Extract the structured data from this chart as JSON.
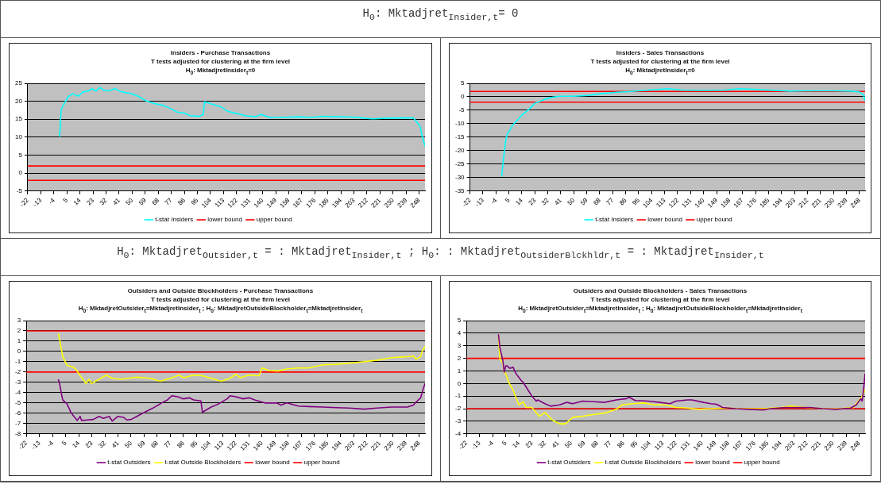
{
  "chart_data": [
    {
      "type": "other",
      "title": "H$_{0}$: Mktadjret$_{Insider,t}$= 0"
    },
    {
      "type": "line",
      "title": "Insiders - Purchase Transactions",
      "subtitle": "T tests adjusted for clustering at the firm level\nH$_{0}$: MktadjretInsider$_{t}$=0",
      "xlim": [
        -22,
        252
      ],
      "xticks": [
        -22,
        -13,
        -4,
        5,
        14,
        23,
        32,
        41,
        50,
        59,
        68,
        77,
        86,
        95,
        104,
        113,
        122,
        131,
        140,
        149,
        158,
        167,
        176,
        185,
        194,
        203,
        212,
        221,
        230,
        239,
        248
      ],
      "ylim": [
        -5,
        25
      ],
      "yticks": [
        -5,
        0,
        5,
        10,
        15,
        20,
        25
      ],
      "grid": "y",
      "legend": "bottom",
      "marker": "none",
      "line_style": "solid",
      "series": [
        {
          "name": "t-stat Insiders",
          "color": "#00ffff",
          "x": [
            0,
            1,
            3,
            6,
            9,
            13,
            16,
            20,
            22,
            25,
            28,
            31,
            34,
            38,
            43,
            49,
            54,
            60,
            66,
            71,
            77,
            81,
            86,
            90,
            96,
            99,
            100,
            105,
            111,
            116,
            120,
            128,
            135,
            139,
            145,
            154,
            165,
            173,
            182,
            192,
            201,
            210,
            216,
            226,
            244,
            246,
            248,
            249,
            250,
            252
          ],
          "values": [
            10.1,
            17.6,
            19.2,
            21.3,
            22.1,
            21.4,
            22.6,
            22.9,
            23.5,
            22.9,
            23.8,
            23.0,
            22.9,
            23.5,
            22.6,
            22.2,
            21.4,
            20.1,
            19.3,
            18.9,
            17.9,
            17.0,
            16.7,
            16.0,
            15.8,
            16.3,
            19.9,
            19.2,
            18.5,
            17.2,
            16.8,
            16.0,
            15.7,
            16.3,
            15.5,
            15.5,
            15.7,
            15.5,
            15.8,
            15.7,
            15.6,
            15.3,
            15.1,
            15.3,
            15.4,
            14.4,
            13.4,
            12.4,
            10.3,
            7.5
          ]
        },
        {
          "name": "lower bound",
          "color": "#ff0000",
          "x": [
            -22,
            252
          ],
          "values": [
            -2,
            -2
          ]
        },
        {
          "name": "upper bound",
          "color": "#ff0000",
          "x": [
            -22,
            252
          ],
          "values": [
            2,
            2
          ]
        }
      ]
    },
    {
      "type": "line",
      "title": "Insiders - Sales Transactions",
      "subtitle": "T tests adjusted for clustering at the firm level\nH$_{0}$: MktadjretInsider$_{t}$=0",
      "xlim": [
        -22,
        252
      ],
      "xticks": [
        -22,
        -13,
        -4,
        5,
        14,
        23,
        32,
        41,
        50,
        59,
        68,
        77,
        86,
        95,
        104,
        113,
        122,
        131,
        140,
        149,
        158,
        167,
        176,
        185,
        194,
        203,
        212,
        221,
        230,
        239,
        248
      ],
      "ylim": [
        -35,
        5
      ],
      "yticks": [
        -35,
        -30,
        -25,
        -20,
        -15,
        -10,
        -5,
        0,
        5
      ],
      "grid": "y",
      "legend": "bottom",
      "marker": "none",
      "line_style": "solid",
      "series": [
        {
          "name": "t-stat Insiders",
          "color": "#00ffff",
          "x": [
            0,
            1,
            3,
            4,
            8,
            11,
            14,
            19,
            23,
            27,
            31,
            35,
            40,
            50,
            60,
            70,
            80,
            90,
            100,
            110,
            115,
            125,
            140,
            155,
            165,
            175,
            185,
            200,
            215,
            230,
            243,
            248,
            251,
            252
          ],
          "values": [
            -29.6,
            -23.9,
            -15.6,
            -13.8,
            -10.3,
            -8.6,
            -6.8,
            -4.6,
            -2.4,
            -1.6,
            -0.7,
            -0.2,
            0.2,
            0.2,
            0.5,
            1.2,
            1.7,
            2.0,
            2.4,
            2.8,
            3.0,
            2.5,
            2.4,
            2.5,
            3.0,
            2.8,
            2.5,
            2.1,
            2.2,
            2.2,
            2.1,
            1.8,
            0.6,
            -1.6
          ]
        },
        {
          "name": "lower bound",
          "color": "#ff0000",
          "x": [
            -22,
            252
          ],
          "values": [
            -2,
            -2
          ]
        },
        {
          "name": "upper bound",
          "color": "#ff0000",
          "x": [
            -22,
            252
          ],
          "values": [
            2,
            2
          ]
        }
      ]
    },
    {
      "type": "other",
      "title": "H$_{0}$: Mktadjret$_{Outsider,t}$ = : Mktadjret$_{Insider,t}$ ; H$_{0}$: : Mktadjret$_{OutsiderBlckhldr,t}$ = : Mktadjret$_{Insider,t}$"
    },
    {
      "type": "line",
      "title": "Outsiders and Outside Blockholders - Purchase Transactions",
      "subtitle": "T tests adjusted for clustering at the firm level\nH$_{0}$: MktadjretOutsider$_{t}$=MktadjretInsider$_{t}$ ; H$_{0}$: MktadjretOutsideBlockholder$_{t}$=MktadjretInsider$_{t}$",
      "xlim": [
        -22,
        252
      ],
      "xticks": [
        -22,
        -13,
        -4,
        5,
        14,
        23,
        32,
        41,
        50,
        59,
        68,
        77,
        86,
        95,
        104,
        113,
        122,
        131,
        140,
        149,
        158,
        167,
        176,
        185,
        194,
        203,
        212,
        221,
        230,
        239,
        248
      ],
      "ylim": [
        -8,
        3
      ],
      "yticks": [
        -8,
        -7,
        -6,
        -5,
        -4,
        -3,
        -2,
        -1,
        0,
        1,
        2,
        3
      ],
      "grid": "y",
      "legend": "bottom",
      "marker": "none",
      "line_style": "solid",
      "series": [
        {
          "name": "t-stat Outsiders",
          "color": "#800080",
          "x": [
            0,
            1,
            2,
            3,
            6,
            9,
            13,
            15,
            16,
            20,
            24,
            28,
            31,
            35,
            37,
            41,
            45,
            47,
            50,
            54,
            58,
            62,
            65,
            71,
            75,
            78,
            82,
            86,
            90,
            93,
            98,
            99,
            105,
            110,
            116,
            118,
            122,
            127,
            131,
            135,
            142,
            150,
            153,
            157,
            165,
            172,
            182,
            191,
            200,
            210,
            219,
            229,
            240,
            244,
            246,
            249,
            250,
            252
          ],
          "values": [
            -2.7,
            -3.2,
            -4.0,
            -4.7,
            -5.1,
            -6.0,
            -6.7,
            -6.3,
            -6.7,
            -6.65,
            -6.6,
            -6.3,
            -6.5,
            -6.3,
            -6.75,
            -6.3,
            -6.4,
            -6.65,
            -6.6,
            -6.3,
            -6.0,
            -5.7,
            -5.5,
            -5.0,
            -4.7,
            -4.3,
            -4.4,
            -4.6,
            -4.5,
            -4.7,
            -4.8,
            -5.9,
            -5.4,
            -5.1,
            -4.6,
            -4.3,
            -4.4,
            -4.6,
            -4.5,
            -4.7,
            -5.0,
            -5.0,
            -5.2,
            -5.0,
            -5.3,
            -5.35,
            -5.4,
            -5.45,
            -5.5,
            -5.6,
            -5.5,
            -5.4,
            -5.4,
            -5.2,
            -4.9,
            -4.5,
            -4.0,
            -3.1
          ]
        },
        {
          "name": "t-stat Outside Blockholders",
          "color": "#ffff00",
          "x": [
            0,
            1,
            2,
            3,
            6,
            10,
            12,
            15,
            17,
            19,
            21,
            23,
            28,
            33,
            37,
            43,
            48,
            54,
            63,
            70,
            77,
            83,
            86,
            93,
            99,
            105,
            112,
            118,
            122,
            125,
            131,
            138,
            140,
            145,
            151,
            157,
            165,
            172,
            182,
            191,
            202,
            210,
            219,
            229,
            240,
            244,
            246,
            249,
            250,
            252
          ],
          "values": [
            1.75,
            1.1,
            0.3,
            -0.5,
            -1.35,
            -1.5,
            -1.7,
            -2.35,
            -2.7,
            -3.1,
            -2.7,
            -3.1,
            -2.7,
            -2.3,
            -2.6,
            -2.7,
            -2.6,
            -2.5,
            -2.6,
            -2.9,
            -2.6,
            -2.3,
            -2.55,
            -2.3,
            -2.35,
            -2.6,
            -2.9,
            -2.6,
            -2.2,
            -2.55,
            -2.3,
            -2.35,
            -1.6,
            -1.85,
            -1.9,
            -1.7,
            -1.6,
            -1.6,
            -1.3,
            -1.25,
            -1.1,
            -1.0,
            -0.85,
            -0.6,
            -0.5,
            -0.45,
            -0.75,
            -0.5,
            0,
            0.5
          ]
        },
        {
          "name": "lower bound",
          "color": "#ff0000",
          "x": [
            -22,
            252
          ],
          "values": [
            -2,
            -2
          ]
        },
        {
          "name": "upper bound",
          "color": "#ff0000",
          "x": [
            -22,
            252
          ],
          "values": [
            2,
            2
          ]
        }
      ]
    },
    {
      "type": "line",
      "title": "Outsiders and Outside Blockholders - Sales Transactions",
      "subtitle": "T tests adjusted for clustering at the firm level\nH$_{0}$: MktadjretOutsider$_{t}$=MktadjretInsider$_{t}$ ; H$_{0}$: MktadjretOutsideBlockholder$_{t}$=MktadjretInsider$_{t}$",
      "xlim": [
        -22,
        252
      ],
      "xticks": [
        -22,
        -13,
        -4,
        5,
        14,
        23,
        32,
        41,
        50,
        59,
        68,
        77,
        86,
        95,
        104,
        113,
        122,
        131,
        140,
        149,
        158,
        167,
        176,
        185,
        194,
        203,
        212,
        221,
        230,
        239,
        248
      ],
      "ylim": [
        -4,
        5
      ],
      "yticks": [
        -4,
        -3,
        -2,
        -1,
        0,
        1,
        2,
        3,
        4,
        5
      ],
      "grid": "y",
      "legend": "bottom",
      "marker": "none",
      "line_style": "solid",
      "series": [
        {
          "name": "t-stat Outsiders",
          "color": "#800080",
          "x": [
            0,
            1,
            3,
            4,
            5,
            6,
            8,
            10,
            12,
            14,
            16,
            17,
            20,
            23,
            26,
            27,
            32,
            36,
            42,
            47,
            51,
            58,
            66,
            73,
            81,
            88,
            90,
            94,
            103,
            111,
            118,
            122,
            130,
            133,
            141,
            146,
            150,
            154,
            163,
            172,
            182,
            187,
            197,
            204,
            214,
            223,
            232,
            242,
            246,
            249,
            250,
            251,
            252
          ],
          "values": [
            3.9,
            2.85,
            1.85,
            0.9,
            1.4,
            1.4,
            1.2,
            1.3,
            0.8,
            0.5,
            0.2,
            0.1,
            -0.45,
            -1.0,
            -1.4,
            -1.3,
            -1.6,
            -1.8,
            -1.7,
            -1.5,
            -1.6,
            -1.4,
            -1.45,
            -1.5,
            -1.3,
            -1.2,
            -1.1,
            -1.35,
            -1.4,
            -1.5,
            -1.6,
            -1.4,
            -1.3,
            -1.3,
            -1.5,
            -1.6,
            -1.65,
            -1.9,
            -2.0,
            -2.05,
            -2.1,
            -2.0,
            -1.9,
            -1.9,
            -1.9,
            -2.0,
            -2.05,
            -1.95,
            -1.7,
            -1.2,
            -1.4,
            -0.4,
            0.8
          ]
        },
        {
          "name": "t-stat Outside Blockholders",
          "color": "#ffff00",
          "x": [
            0,
            1,
            3,
            4,
            5,
            7,
            10,
            12,
            14,
            17,
            19,
            23,
            28,
            32,
            37,
            42,
            46,
            51,
            58,
            66,
            73,
            81,
            85,
            92,
            100,
            107,
            115,
            122,
            130,
            138,
            145,
            156,
            167,
            182,
            194,
            201,
            212,
            223,
            234,
            244,
            248,
            250,
            252
          ],
          "values": [
            3.8,
            1.95,
            1.65,
            0.9,
            0.8,
            0.1,
            -0.5,
            -1.1,
            -1.7,
            -1.45,
            -1.9,
            -1.9,
            -2.6,
            -2.3,
            -2.9,
            -3.2,
            -3.2,
            -2.7,
            -2.6,
            -2.45,
            -2.35,
            -2.05,
            -1.7,
            -1.6,
            -1.55,
            -1.7,
            -1.7,
            -1.9,
            -1.95,
            -2.05,
            -2.0,
            -1.95,
            -2.0,
            -2.0,
            -1.9,
            -1.8,
            -1.9,
            -2.0,
            -2.0,
            -1.9,
            -1.3,
            -1.0,
            -0.5
          ]
        },
        {
          "name": "lower bound",
          "color": "#ff0000",
          "x": [
            -22,
            252
          ],
          "values": [
            -2,
            -2
          ]
        },
        {
          "name": "upper bound",
          "color": "#ff0000",
          "x": [
            -22,
            252
          ],
          "values": [
            2,
            2
          ]
        }
      ]
    }
  ]
}
